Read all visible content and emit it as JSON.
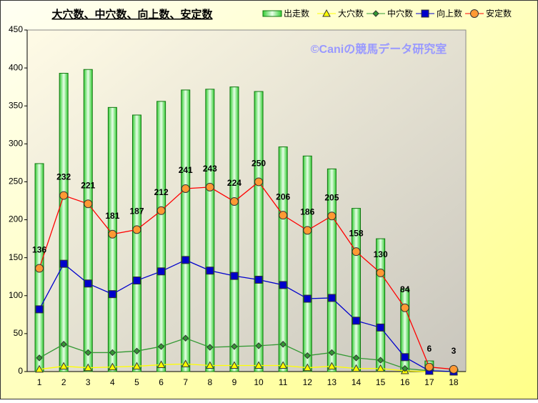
{
  "chart_data": {
    "type": "bar-line",
    "title": "大穴数、中穴数、向上数、安定数",
    "annotation": "©Caniの競馬データ研究室",
    "categories": [
      "1",
      "2",
      "3",
      "4",
      "5",
      "6",
      "7",
      "8",
      "9",
      "10",
      "11",
      "12",
      "13",
      "14",
      "15",
      "16",
      "17",
      "18"
    ],
    "ylim": [
      0,
      450
    ],
    "yticks": [
      0,
      50,
      100,
      150,
      200,
      250,
      300,
      350,
      400,
      450
    ],
    "grid": false,
    "legend": "top-right",
    "series": [
      {
        "name": "出走数",
        "type": "bar",
        "color": "#33cc33",
        "values": [
          274,
          393,
          398,
          348,
          338,
          356,
          371,
          372,
          375,
          369,
          296,
          284,
          267,
          215,
          175,
          109,
          14,
          3
        ]
      },
      {
        "name": "大穴数",
        "type": "line",
        "marker": "triangle",
        "color": "#ffff00",
        "values": [
          3,
          7,
          5,
          6,
          7,
          9,
          10,
          8,
          8,
          8,
          8,
          5,
          7,
          4,
          4,
          1,
          0,
          0
        ]
      },
      {
        "name": "中穴数",
        "type": "line",
        "marker": "diamond",
        "color": "#339933",
        "values": [
          18,
          36,
          25,
          25,
          27,
          33,
          44,
          32,
          33,
          34,
          36,
          21,
          25,
          18,
          15,
          4,
          1,
          0
        ]
      },
      {
        "name": "向上数",
        "type": "line",
        "marker": "square",
        "color": "#0000cc",
        "values": [
          82,
          142,
          116,
          102,
          120,
          132,
          147,
          133,
          126,
          121,
          114,
          96,
          97,
          67,
          58,
          19,
          1,
          0
        ]
      },
      {
        "name": "安定数",
        "type": "line",
        "marker": "circle",
        "color": "#ff9933",
        "line_color": "#ff0000",
        "labels": true,
        "values": [
          136,
          232,
          221,
          181,
          187,
          212,
          241,
          243,
          224,
          250,
          206,
          186,
          205,
          158,
          130,
          84,
          6,
          3
        ]
      }
    ]
  }
}
